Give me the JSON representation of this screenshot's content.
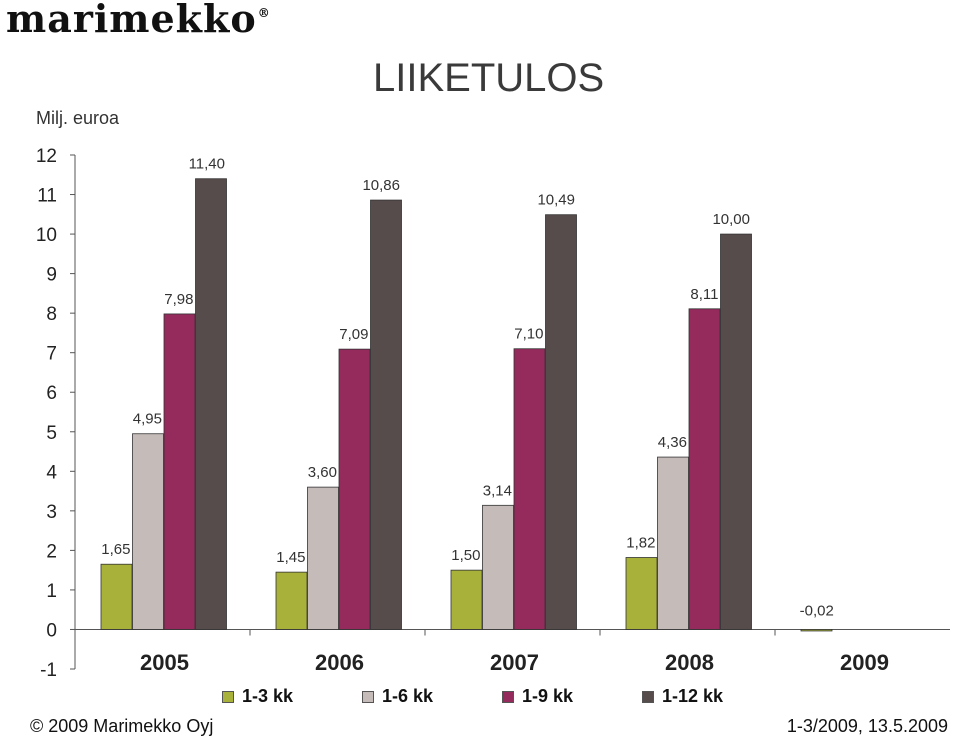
{
  "logo": {
    "text": "marimekko",
    "mark": "®"
  },
  "footer": {
    "copyright": "© 2009 Marimekko Oyj",
    "date": "1-3/2009, 13.5.2009"
  },
  "colors": {
    "1-3 kk": "#a8b23a",
    "1-6 kk": "#c5bcb9",
    "1-9 kk": "#952a5c",
    "1-12 kk": "#574c4c"
  },
  "chart_data": {
    "type": "bar",
    "title": "LIIKETULOS",
    "ylabel": "Milj. euroa",
    "xlabel": "",
    "ylim": [
      -1,
      12
    ],
    "yticks": [
      -1,
      0,
      1,
      2,
      3,
      4,
      5,
      6,
      7,
      8,
      9,
      10,
      11,
      12
    ],
    "categories": [
      "2005",
      "2006",
      "2007",
      "2008",
      "2009"
    ],
    "series": [
      {
        "name": "1-3 kk",
        "values": [
          1.65,
          1.45,
          1.5,
          1.82,
          -0.02
        ],
        "labels": [
          "1,65",
          "1,45",
          "1,50",
          "1,82",
          "-0,02"
        ]
      },
      {
        "name": "1-6 kk",
        "values": [
          4.95,
          3.6,
          3.14,
          4.36,
          null
        ],
        "labels": [
          "4,95",
          "3,60",
          "3,14",
          "4,36",
          ""
        ]
      },
      {
        "name": "1-9 kk",
        "values": [
          7.98,
          7.09,
          7.1,
          8.11,
          null
        ],
        "labels": [
          "7,98",
          "7,09",
          "7,10",
          "8,11",
          ""
        ]
      },
      {
        "name": "1-12 kk",
        "values": [
          11.4,
          10.86,
          10.49,
          10.0,
          null
        ],
        "labels": [
          "11,40",
          "10,86",
          "10,49",
          "10,00",
          ""
        ]
      }
    ],
    "legend": "bottom",
    "grid": false
  }
}
